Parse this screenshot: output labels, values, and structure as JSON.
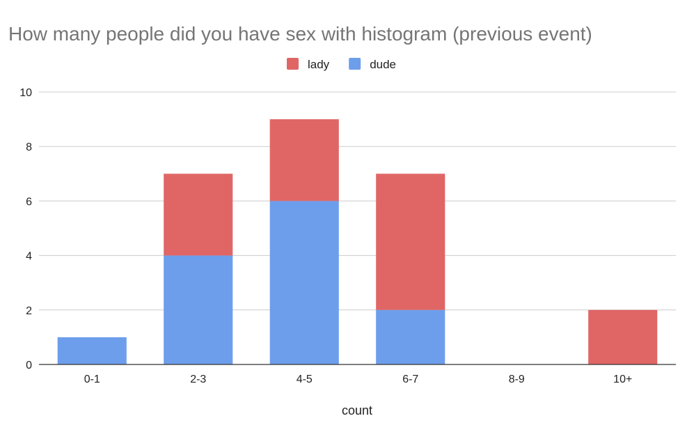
{
  "chart_data": {
    "type": "bar",
    "stacked": true,
    "title": "How many people did you have sex with histogram (previous event)",
    "xlabel": "count",
    "ylabel": "",
    "categories": [
      "0-1",
      "2-3",
      "4-5",
      "6-7",
      "8-9",
      "10+"
    ],
    "series": [
      {
        "name": "dude",
        "color": "#6d9eeb",
        "values": [
          1,
          4,
          6,
          2,
          0,
          0
        ]
      },
      {
        "name": "lady",
        "color": "#e06666",
        "values": [
          0,
          3,
          3,
          5,
          0,
          2
        ]
      }
    ],
    "legend_order": [
      "lady",
      "dude"
    ],
    "legend_position": "top",
    "ylim": [
      0,
      10
    ],
    "yticks": [
      0,
      2,
      4,
      6,
      8,
      10
    ],
    "grid": true
  }
}
